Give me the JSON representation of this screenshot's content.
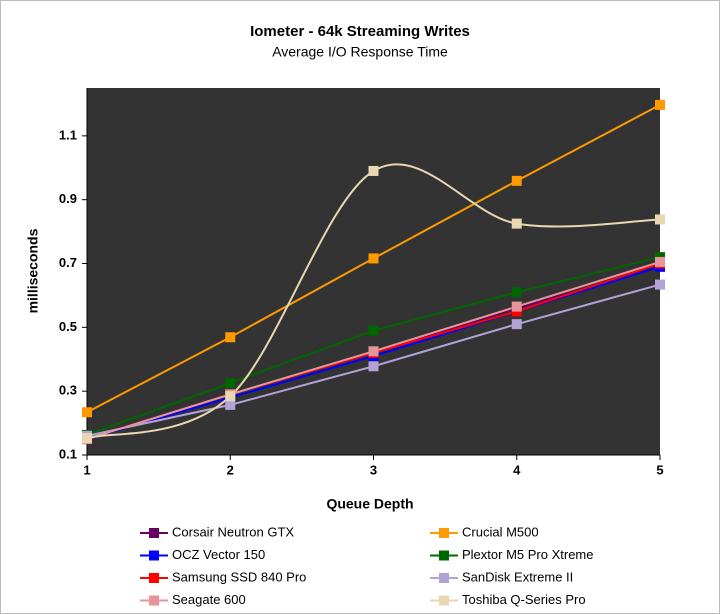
{
  "chart_data": {
    "type": "line",
    "title": "Iometer - 64k Streaming Writes",
    "subtitle": "Average I/O Response Time",
    "x_label": "Queue Depth",
    "y_label": "milliseconds",
    "x": [
      1,
      2,
      3,
      4,
      5
    ],
    "xlim": [
      1,
      5
    ],
    "xticks": [
      1,
      2,
      3,
      4,
      5
    ],
    "ylim": [
      0.1,
      1.25
    ],
    "yticks": [
      0.1,
      0.3,
      0.5,
      0.7,
      0.9,
      1.1
    ],
    "series": [
      {
        "name": "Corsair Neutron GTX",
        "color": "#660066",
        "values": [
          0.15,
          0.29,
          0.42,
          0.56,
          0.69
        ]
      },
      {
        "name": "Crucial M500",
        "color": "#ff9900",
        "values": [
          0.234,
          0.469,
          0.716,
          0.959,
          1.197
        ]
      },
      {
        "name": "OCZ Vector 150",
        "color": "#0000ff",
        "values": [
          0.15,
          0.28,
          0.41,
          0.55,
          0.69
        ]
      },
      {
        "name": "Plextor M5 Pro Xtreme",
        "color": "#006600",
        "values": [
          0.163,
          0.325,
          0.49,
          0.61,
          0.72
        ]
      },
      {
        "name": "Samsung SSD 840 Pro",
        "color": "#ff0000",
        "values": [
          0.15,
          0.29,
          0.42,
          0.55,
          0.7
        ]
      },
      {
        "name": "SanDisk Extreme II",
        "color": "#b3a2d6",
        "values": [
          0.16,
          0.257,
          0.378,
          0.51,
          0.634
        ]
      },
      {
        "name": "Seagate 600",
        "color": "#e6969a",
        "values": [
          0.15,
          0.29,
          0.425,
          0.565,
          0.705
        ]
      },
      {
        "name": "Toshiba Q-Series Pro",
        "color": "#e8d7b0",
        "smooth": true,
        "values": [
          0.153,
          0.284,
          0.99,
          0.825,
          0.838
        ]
      }
    ]
  }
}
